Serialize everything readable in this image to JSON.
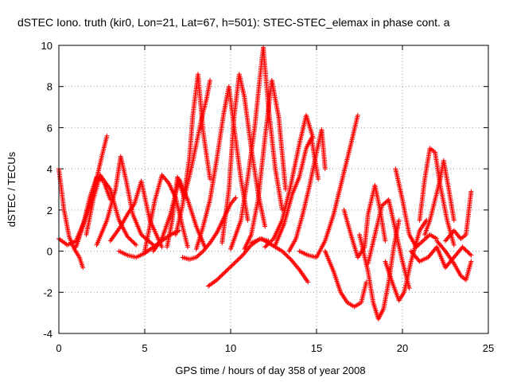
{
  "chart_data": {
    "type": "scatter",
    "title": "dSTEC Iono. truth (kir0, Lon=21, Lat=67, h=501): STEC-STEC_elemax in phase cont. a",
    "xlabel": "GPS time / hours of day 358 of year 2008",
    "ylabel": "dSTEC  / TECUs",
    "xlim": [
      0,
      25
    ],
    "ylim": [
      -4,
      10
    ],
    "xticks": [
      "0",
      "5",
      "10",
      "15",
      "20",
      "25"
    ],
    "yticks": [
      "-4",
      "-2",
      "0",
      "2",
      "4",
      "6",
      "8",
      "10"
    ],
    "grid": true,
    "marker": "plus",
    "color": "#ff0000",
    "series": [
      {
        "x": [
          0.0,
          0.3,
          0.6,
          0.9,
          1.2,
          1.4
        ],
        "y": [
          4.0,
          2.0,
          0.7,
          0.1,
          -0.3,
          -0.8
        ]
      },
      {
        "x": [
          0.0,
          0.5,
          1.0,
          1.5,
          2.0,
          2.5,
          2.8
        ],
        "y": [
          0.6,
          0.3,
          0.5,
          1.5,
          2.8,
          4.6,
          5.6
        ]
      },
      {
        "x": [
          1.0,
          1.4,
          1.8,
          2.2,
          2.6,
          3.0
        ],
        "y": [
          0.2,
          1.2,
          2.6,
          3.6,
          3.4,
          2.5
        ]
      },
      {
        "x": [
          1.6,
          2.0,
          2.4,
          3.0,
          3.5,
          4.0,
          4.5
        ],
        "y": [
          0.8,
          2.5,
          3.7,
          3.0,
          1.5,
          0.7,
          0.3
        ]
      },
      {
        "x": [
          2.2,
          2.8,
          3.3,
          3.6,
          3.9,
          4.3,
          4.8,
          5.5
        ],
        "y": [
          0.3,
          1.5,
          3.0,
          4.6,
          3.5,
          1.8,
          0.8,
          0.3
        ]
      },
      {
        "x": [
          3.0,
          3.6,
          4.0,
          4.4,
          4.8,
          5.3,
          6.0
        ],
        "y": [
          0.5,
          1.2,
          1.8,
          2.3,
          3.4,
          1.5,
          0.2
        ]
      },
      {
        "x": [
          3.5,
          4.0,
          4.5,
          5.0,
          5.5,
          6.0,
          6.5,
          7.0
        ],
        "y": [
          0.0,
          -0.2,
          -0.3,
          -0.1,
          0.2,
          0.5,
          0.8,
          1.0
        ]
      },
      {
        "x": [
          5.0,
          5.6,
          6.0,
          6.4,
          6.8,
          7.2,
          7.5
        ],
        "y": [
          0.0,
          2.5,
          3.7,
          3.3,
          2.6,
          1.2,
          0.2
        ]
      },
      {
        "x": [
          5.5,
          6.0,
          6.5,
          7.0,
          7.5,
          8.0,
          8.5
        ],
        "y": [
          0.0,
          0.6,
          1.8,
          3.5,
          2.5,
          1.2,
          0.2
        ]
      },
      {
        "x": [
          6.3,
          6.6,
          6.9,
          7.3,
          7.7,
          8.0,
          8.3,
          8.6,
          8.8
        ],
        "y": [
          0.2,
          1.5,
          3.6,
          2.6,
          4.0,
          5.2,
          6.4,
          7.4,
          8.3
        ]
      },
      {
        "x": [
          6.8,
          7.2,
          7.6,
          7.8,
          8.1,
          8.4,
          8.8
        ],
        "y": [
          0.8,
          2.2,
          4.5,
          6.6,
          8.6,
          5.8,
          3.5
        ]
      },
      {
        "x": [
          7.2,
          7.6,
          8.0,
          8.4,
          8.8,
          9.2,
          9.6,
          10.0,
          10.3
        ],
        "y": [
          -0.3,
          -0.4,
          -0.3,
          0.0,
          0.4,
          0.9,
          1.6,
          2.3,
          2.6
        ]
      },
      {
        "x": [
          8.0,
          8.4,
          8.8,
          9.2,
          9.6,
          9.9,
          10.2,
          10.6,
          11.0
        ],
        "y": [
          0.1,
          1.2,
          2.5,
          4.5,
          6.7,
          8.0,
          6.0,
          3.5,
          1.5
        ]
      },
      {
        "x": [
          8.7,
          9.2,
          9.7,
          10.2,
          10.7,
          11.2,
          11.7,
          12.2
        ],
        "y": [
          -1.7,
          -1.4,
          -1.0,
          -0.6,
          -0.2,
          0.3,
          0.6,
          0.5
        ]
      },
      {
        "x": [
          9.5,
          9.9,
          10.2,
          10.5,
          10.8,
          11.2,
          11.6,
          12.0
        ],
        "y": [
          0.4,
          3.0,
          6.5,
          8.6,
          7.5,
          5.0,
          2.8,
          1.2
        ]
      },
      {
        "x": [
          10.0,
          10.6,
          11.0,
          11.4,
          11.7,
          11.9,
          12.2,
          12.6,
          13.0
        ],
        "y": [
          0.1,
          1.5,
          3.6,
          6.0,
          8.4,
          9.9,
          7.0,
          4.0,
          2.0
        ]
      },
      {
        "x": [
          10.8,
          11.2,
          11.6,
          12.0,
          12.4,
          12.8,
          13.2
        ],
        "y": [
          0.1,
          0.8,
          2.5,
          5.5,
          8.3,
          6.5,
          3.0
        ]
      },
      {
        "x": [
          11.2,
          11.8,
          12.4,
          13.0,
          13.5,
          14.0,
          14.5
        ],
        "y": [
          0.4,
          0.6,
          0.3,
          0.0,
          -0.4,
          -0.9,
          -1.5
        ]
      },
      {
        "x": [
          12.0,
          12.5,
          13.0,
          13.5,
          14.0,
          14.4,
          14.8
        ],
        "y": [
          0.2,
          0.6,
          1.5,
          3.2,
          5.2,
          6.6,
          5.5
        ]
      },
      {
        "x": [
          12.6,
          13.1,
          13.6,
          14.0,
          14.4,
          14.7,
          15.1
        ],
        "y": [
          0.3,
          1.3,
          2.8,
          3.6,
          5.0,
          5.5,
          3.5
        ]
      },
      {
        "x": [
          13.4,
          13.8,
          14.2,
          14.6,
          15.0,
          15.3,
          15.5
        ],
        "y": [
          0.0,
          0.6,
          1.8,
          3.2,
          4.8,
          5.9,
          4.0
        ]
      },
      {
        "x": [
          14.0,
          14.5,
          15.0,
          15.5,
          16.0,
          16.5,
          17.0,
          17.4
        ],
        "y": [
          0.0,
          -0.2,
          -0.3,
          0.5,
          1.8,
          3.5,
          5.2,
          6.6
        ]
      },
      {
        "x": [
          15.5,
          16.0,
          16.4,
          16.8,
          17.2,
          17.6,
          17.9
        ],
        "y": [
          0.0,
          -1.0,
          -2.0,
          -2.5,
          -2.7,
          -2.5,
          -1.5
        ]
      },
      {
        "x": [
          16.6,
          17.0,
          17.4,
          17.8,
          18.0,
          18.4,
          18.7,
          19.0
        ],
        "y": [
          2.0,
          0.8,
          -0.3,
          0.2,
          1.8,
          3.2,
          2.0,
          0.5
        ]
      },
      {
        "x": [
          17.5,
          18.0,
          18.3,
          18.6,
          18.9,
          19.2,
          19.5,
          19.8
        ],
        "y": [
          0.8,
          -1.0,
          -2.5,
          -3.3,
          -2.8,
          -1.5,
          0.2,
          1.5
        ]
      },
      {
        "x": [
          18.0,
          18.4,
          18.8,
          19.2,
          19.6,
          20.0,
          20.4
        ],
        "y": [
          -0.6,
          0.8,
          2.2,
          2.5,
          1.0,
          -0.5,
          -1.8
        ]
      },
      {
        "x": [
          19.0,
          19.4,
          19.8,
          20.1,
          20.5,
          21.0,
          21.4
        ],
        "y": [
          -0.5,
          -1.5,
          -2.4,
          -2.0,
          -0.5,
          1.0,
          1.5
        ]
      },
      {
        "x": [
          19.6,
          20.0,
          20.4,
          20.8,
          21.2,
          21.6,
          22.0
        ],
        "y": [
          4.0,
          2.5,
          0.8,
          0.2,
          0.5,
          0.8,
          0.6
        ]
      },
      {
        "x": [
          21.0,
          21.3,
          21.6,
          21.9,
          22.2,
          22.6,
          23.0
        ],
        "y": [
          1.5,
          3.5,
          5.0,
          4.8,
          3.2,
          1.5,
          0.3
        ]
      },
      {
        "x": [
          21.3,
          21.6,
          21.9,
          22.2,
          22.4,
          22.7,
          23.0
        ],
        "y": [
          0.8,
          1.5,
          2.5,
          3.5,
          4.4,
          3.0,
          1.5
        ]
      },
      {
        "x": [
          22.0,
          22.5,
          23.0,
          23.4,
          23.7,
          24.0
        ],
        "y": [
          0.5,
          0.0,
          -0.6,
          -1.2,
          -1.4,
          -0.5
        ]
      },
      {
        "x": [
          22.5,
          23.0,
          23.4,
          23.7,
          24.0
        ],
        "y": [
          0.5,
          1.0,
          0.6,
          0.8,
          2.9
        ]
      },
      {
        "x": [
          20.5,
          21.0,
          21.5,
          22.0,
          22.5,
          23.0,
          23.5,
          24.0
        ],
        "y": [
          0.0,
          -0.5,
          -0.3,
          0.2,
          -0.8,
          -0.3,
          0.2,
          -0.2
        ]
      }
    ]
  }
}
